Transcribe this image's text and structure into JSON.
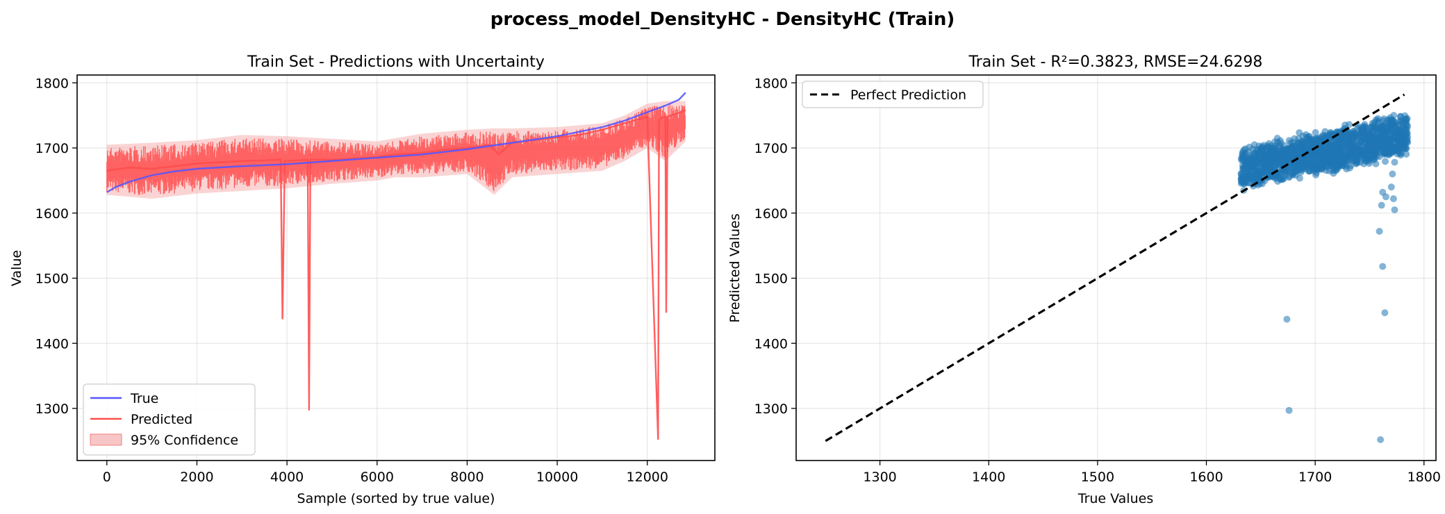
{
  "figure": {
    "suptitle": "process_model_DensityHC - DensityHC (Train)"
  },
  "chart_data": [
    {
      "type": "line",
      "title": "Train Set - Predictions with Uncertainty",
      "xlabel": "Sample (sorted by true value)",
      "ylabel": "Value",
      "xlim": [
        -660,
        13500
      ],
      "ylim": [
        1220,
        1812
      ],
      "xticks": [
        0,
        2000,
        4000,
        6000,
        8000,
        10000,
        12000
      ],
      "yticks": [
        1300,
        1400,
        1500,
        1600,
        1700,
        1800
      ],
      "grid": true,
      "legend_position": "lower-left",
      "series": [
        {
          "name": "True",
          "color": "#5555ff",
          "x": [
            0,
            200,
            500,
            1000,
            1500,
            2000,
            3000,
            4000,
            5000,
            6000,
            7000,
            8000,
            9000,
            10000,
            11000,
            11500,
            12000,
            12400,
            12700,
            12850
          ],
          "values": [
            1632,
            1640,
            1648,
            1658,
            1664,
            1668,
            1672,
            1675,
            1680,
            1685,
            1690,
            1698,
            1708,
            1718,
            1732,
            1742,
            1755,
            1765,
            1774,
            1785
          ]
        },
        {
          "name": "Predicted",
          "color": "#ff4d4d",
          "x": [
            0,
            500,
            1000,
            1500,
            2000,
            2500,
            3000,
            3500,
            3860,
            3900,
            3950,
            4000,
            4460,
            4490,
            4520,
            5000,
            5500,
            6000,
            6400,
            6900,
            7500,
            8000,
            8500,
            8700,
            9000,
            9500,
            10000,
            10500,
            11000,
            11500,
            12000,
            12240,
            12260,
            12280,
            12400,
            12420,
            12450,
            12600,
            12750,
            12850
          ],
          "values": [
            1665,
            1670,
            1668,
            1672,
            1676,
            1678,
            1680,
            1681,
            1682,
            1437,
            1680,
            1680,
            1682,
            1297,
            1682,
            1682,
            1684,
            1686,
            1690,
            1692,
            1697,
            1700,
            1705,
            1690,
            1708,
            1712,
            1716,
            1720,
            1728,
            1738,
            1748,
            1252,
            1740,
            1745,
            1748,
            1447,
            1748,
            1752,
            1755,
            1758
          ]
        }
      ],
      "band": {
        "name": "95% Confidence",
        "color": "#f4a0a0",
        "x": [
          0,
          1000,
          2000,
          3000,
          4000,
          5000,
          6000,
          6400,
          7000,
          8000,
          8600,
          9000,
          10000,
          11000,
          11500,
          12000,
          12400,
          12850
        ],
        "upper": [
          1705,
          1708,
          1712,
          1720,
          1718,
          1714,
          1710,
          1715,
          1722,
          1728,
          1730,
          1730,
          1732,
          1738,
          1750,
          1768,
          1772,
          1772
        ],
        "lower": [
          1628,
          1622,
          1630,
          1634,
          1638,
          1645,
          1650,
          1655,
          1655,
          1660,
          1628,
          1655,
          1660,
          1665,
          1680,
          1700,
          1680,
          1710
        ]
      }
    },
    {
      "type": "scatter",
      "title": "Train Set - R²=0.3823, RMSE=24.6298",
      "xlabel": "True Values",
      "ylabel": "Predicted Values",
      "xlim": [
        1223,
        1811
      ],
      "ylim": [
        1220,
        1812
      ],
      "xticks": [
        1300,
        1400,
        1500,
        1600,
        1700,
        1800
      ],
      "yticks": [
        1300,
        1400,
        1500,
        1600,
        1700,
        1800
      ],
      "grid": true,
      "legend_position": "top-left",
      "cluster": {
        "color": "#1f77b4",
        "x_range": [
          1632,
          1785
        ],
        "y_range": [
          1620,
          1772
        ]
      },
      "outliers": {
        "x": [
          1674,
          1676,
          1760,
          1762,
          1764,
          1759,
          1761,
          1770,
          1772,
          1773,
          1771,
          1762,
          1765,
          1773
        ],
        "y": [
          1437,
          1297,
          1252,
          1518,
          1447,
          1572,
          1612,
          1640,
          1622,
          1605,
          1660,
          1632,
          1625,
          1678
        ]
      },
      "reference_line": {
        "name": "Perfect Prediction",
        "color": "#000000",
        "x": [
          1250,
          1782
        ],
        "y": [
          1250,
          1782
        ]
      }
    }
  ]
}
